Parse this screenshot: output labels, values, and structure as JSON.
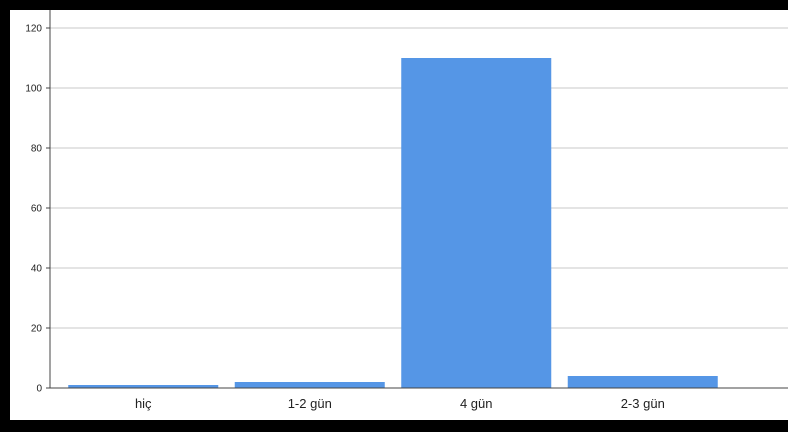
{
  "chart_data": {
    "type": "bar",
    "categories": [
      "hiç",
      "1-2 gün",
      "4 gün",
      "2-3 gün"
    ],
    "values": [
      1,
      2,
      110,
      4
    ],
    "title": "",
    "xlabel": "",
    "ylabel": "",
    "ylim": [
      0,
      120
    ],
    "yticks": [
      "0",
      "20",
      "40",
      "60",
      "80",
      "100",
      "120"
    ],
    "grid": true,
    "legend": "none",
    "colors": {
      "bar": "#5596e6",
      "grid": "#c8c8c8",
      "axis": "#444444",
      "background": "#ffffff",
      "border": "#000000"
    }
  }
}
